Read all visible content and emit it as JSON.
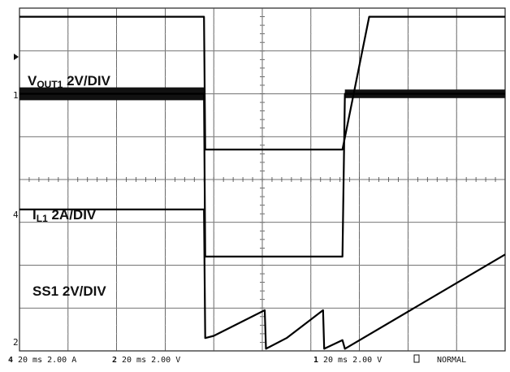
{
  "chart_data": {
    "type": "line",
    "title": "",
    "xlabel": "",
    "ylabel": "",
    "grid": true,
    "x_range_ms": [
      0,
      200
    ],
    "y_range_div": [
      0,
      8
    ],
    "traces": [
      {
        "name": "VOUT1 2V/DIV",
        "label_main": "V",
        "label_sub": "OUT1",
        "label_rest": " 2V/DIV",
        "marker": "1",
        "x_ms": [
          0,
          76,
          76.5,
          133,
          144,
          200
        ],
        "y_div": [
          7.8,
          7.8,
          4.7,
          4.7,
          7.8,
          7.8
        ]
      },
      {
        "name": "IL1 2A/DIV",
        "label_main": "I",
        "label_sub": "L1",
        "label_rest": " 2A/DIV",
        "marker": "4",
        "x_ms": [
          0,
          76,
          76.5,
          133,
          134,
          200
        ],
        "y_div": [
          6.0,
          6.0,
          2.2,
          2.2,
          6.0,
          6.0
        ],
        "ripple_band_div": [
          [
            0,
            76,
            5.85,
            6.15
          ],
          [
            134,
            200,
            5.9,
            6.1
          ]
        ]
      },
      {
        "name": "SS1 2V/DIV",
        "label_main": "SS1",
        "label_sub": "",
        "label_rest": " 2V/DIV",
        "marker": "2",
        "x_ms": [
          0,
          76,
          76.5,
          80,
          101,
          101.5,
          110,
          125,
          125.5,
          133,
          134,
          200
        ],
        "y_div": [
          3.3,
          3.3,
          0.3,
          0.35,
          0.95,
          0.05,
          0.3,
          0.95,
          0.05,
          0.25,
          0.05,
          2.25
        ]
      }
    ]
  },
  "footer": {
    "ch4_num": "4",
    "ch4_text": "20 ms 2.00 A",
    "ch2_num": "2",
    "ch2_text": "20 ms 2.00 V",
    "ch1_num": "1",
    "ch1_text": "20 ms 2.00 V",
    "mode_text": "NORMAL"
  }
}
